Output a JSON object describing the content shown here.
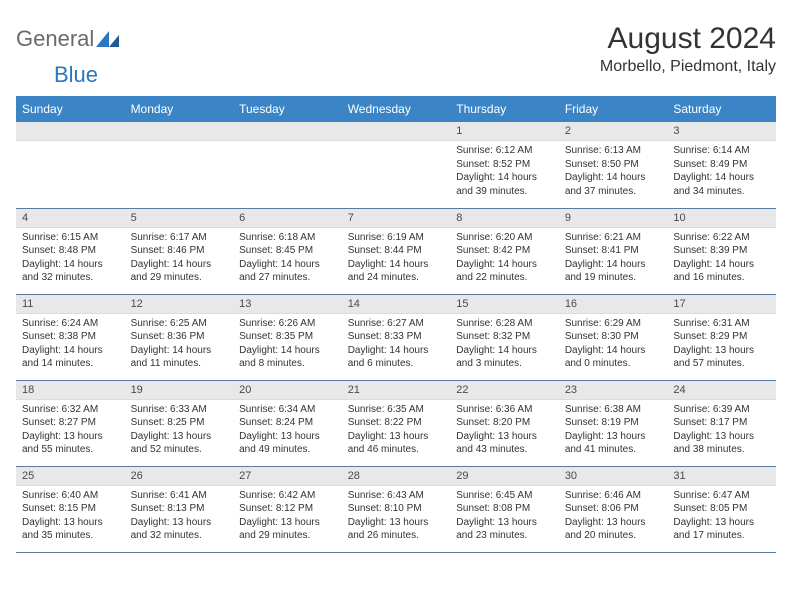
{
  "logo": {
    "word1": "General",
    "word2": "Blue"
  },
  "title": "August 2024",
  "location": "Morbello, Piedmont, Italy",
  "colors": {
    "header_bg": "#3b85c6",
    "header_text": "#ffffff",
    "daynum_bg": "#e8e8e8",
    "row_border": "#5a7aa0",
    "logo_gray": "#6a6a6a",
    "logo_blue": "#2a76bf",
    "text": "#333333"
  },
  "weekdays": [
    "Sunday",
    "Monday",
    "Tuesday",
    "Wednesday",
    "Thursday",
    "Friday",
    "Saturday"
  ],
  "weeks": [
    [
      null,
      null,
      null,
      null,
      {
        "n": "1",
        "sr": "6:12 AM",
        "ss": "8:52 PM",
        "dl1": "14 hours",
        "dl2": "and 39 minutes."
      },
      {
        "n": "2",
        "sr": "6:13 AM",
        "ss": "8:50 PM",
        "dl1": "14 hours",
        "dl2": "and 37 minutes."
      },
      {
        "n": "3",
        "sr": "6:14 AM",
        "ss": "8:49 PM",
        "dl1": "14 hours",
        "dl2": "and 34 minutes."
      }
    ],
    [
      {
        "n": "4",
        "sr": "6:15 AM",
        "ss": "8:48 PM",
        "dl1": "14 hours",
        "dl2": "and 32 minutes."
      },
      {
        "n": "5",
        "sr": "6:17 AM",
        "ss": "8:46 PM",
        "dl1": "14 hours",
        "dl2": "and 29 minutes."
      },
      {
        "n": "6",
        "sr": "6:18 AM",
        "ss": "8:45 PM",
        "dl1": "14 hours",
        "dl2": "and 27 minutes."
      },
      {
        "n": "7",
        "sr": "6:19 AM",
        "ss": "8:44 PM",
        "dl1": "14 hours",
        "dl2": "and 24 minutes."
      },
      {
        "n": "8",
        "sr": "6:20 AM",
        "ss": "8:42 PM",
        "dl1": "14 hours",
        "dl2": "and 22 minutes."
      },
      {
        "n": "9",
        "sr": "6:21 AM",
        "ss": "8:41 PM",
        "dl1": "14 hours",
        "dl2": "and 19 minutes."
      },
      {
        "n": "10",
        "sr": "6:22 AM",
        "ss": "8:39 PM",
        "dl1": "14 hours",
        "dl2": "and 16 minutes."
      }
    ],
    [
      {
        "n": "11",
        "sr": "6:24 AM",
        "ss": "8:38 PM",
        "dl1": "14 hours",
        "dl2": "and 14 minutes."
      },
      {
        "n": "12",
        "sr": "6:25 AM",
        "ss": "8:36 PM",
        "dl1": "14 hours",
        "dl2": "and 11 minutes."
      },
      {
        "n": "13",
        "sr": "6:26 AM",
        "ss": "8:35 PM",
        "dl1": "14 hours",
        "dl2": "and 8 minutes."
      },
      {
        "n": "14",
        "sr": "6:27 AM",
        "ss": "8:33 PM",
        "dl1": "14 hours",
        "dl2": "and 6 minutes."
      },
      {
        "n": "15",
        "sr": "6:28 AM",
        "ss": "8:32 PM",
        "dl1": "14 hours",
        "dl2": "and 3 minutes."
      },
      {
        "n": "16",
        "sr": "6:29 AM",
        "ss": "8:30 PM",
        "dl1": "14 hours",
        "dl2": "and 0 minutes."
      },
      {
        "n": "17",
        "sr": "6:31 AM",
        "ss": "8:29 PM",
        "dl1": "13 hours",
        "dl2": "and 57 minutes."
      }
    ],
    [
      {
        "n": "18",
        "sr": "6:32 AM",
        "ss": "8:27 PM",
        "dl1": "13 hours",
        "dl2": "and 55 minutes."
      },
      {
        "n": "19",
        "sr": "6:33 AM",
        "ss": "8:25 PM",
        "dl1": "13 hours",
        "dl2": "and 52 minutes."
      },
      {
        "n": "20",
        "sr": "6:34 AM",
        "ss": "8:24 PM",
        "dl1": "13 hours",
        "dl2": "and 49 minutes."
      },
      {
        "n": "21",
        "sr": "6:35 AM",
        "ss": "8:22 PM",
        "dl1": "13 hours",
        "dl2": "and 46 minutes."
      },
      {
        "n": "22",
        "sr": "6:36 AM",
        "ss": "8:20 PM",
        "dl1": "13 hours",
        "dl2": "and 43 minutes."
      },
      {
        "n": "23",
        "sr": "6:38 AM",
        "ss": "8:19 PM",
        "dl1": "13 hours",
        "dl2": "and 41 minutes."
      },
      {
        "n": "24",
        "sr": "6:39 AM",
        "ss": "8:17 PM",
        "dl1": "13 hours",
        "dl2": "and 38 minutes."
      }
    ],
    [
      {
        "n": "25",
        "sr": "6:40 AM",
        "ss": "8:15 PM",
        "dl1": "13 hours",
        "dl2": "and 35 minutes."
      },
      {
        "n": "26",
        "sr": "6:41 AM",
        "ss": "8:13 PM",
        "dl1": "13 hours",
        "dl2": "and 32 minutes."
      },
      {
        "n": "27",
        "sr": "6:42 AM",
        "ss": "8:12 PM",
        "dl1": "13 hours",
        "dl2": "and 29 minutes."
      },
      {
        "n": "28",
        "sr": "6:43 AM",
        "ss": "8:10 PM",
        "dl1": "13 hours",
        "dl2": "and 26 minutes."
      },
      {
        "n": "29",
        "sr": "6:45 AM",
        "ss": "8:08 PM",
        "dl1": "13 hours",
        "dl2": "and 23 minutes."
      },
      {
        "n": "30",
        "sr": "6:46 AM",
        "ss": "8:06 PM",
        "dl1": "13 hours",
        "dl2": "and 20 minutes."
      },
      {
        "n": "31",
        "sr": "6:47 AM",
        "ss": "8:05 PM",
        "dl1": "13 hours",
        "dl2": "and 17 minutes."
      }
    ]
  ],
  "labels": {
    "sunrise": "Sunrise:",
    "sunset": "Sunset:",
    "daylight": "Daylight:"
  }
}
